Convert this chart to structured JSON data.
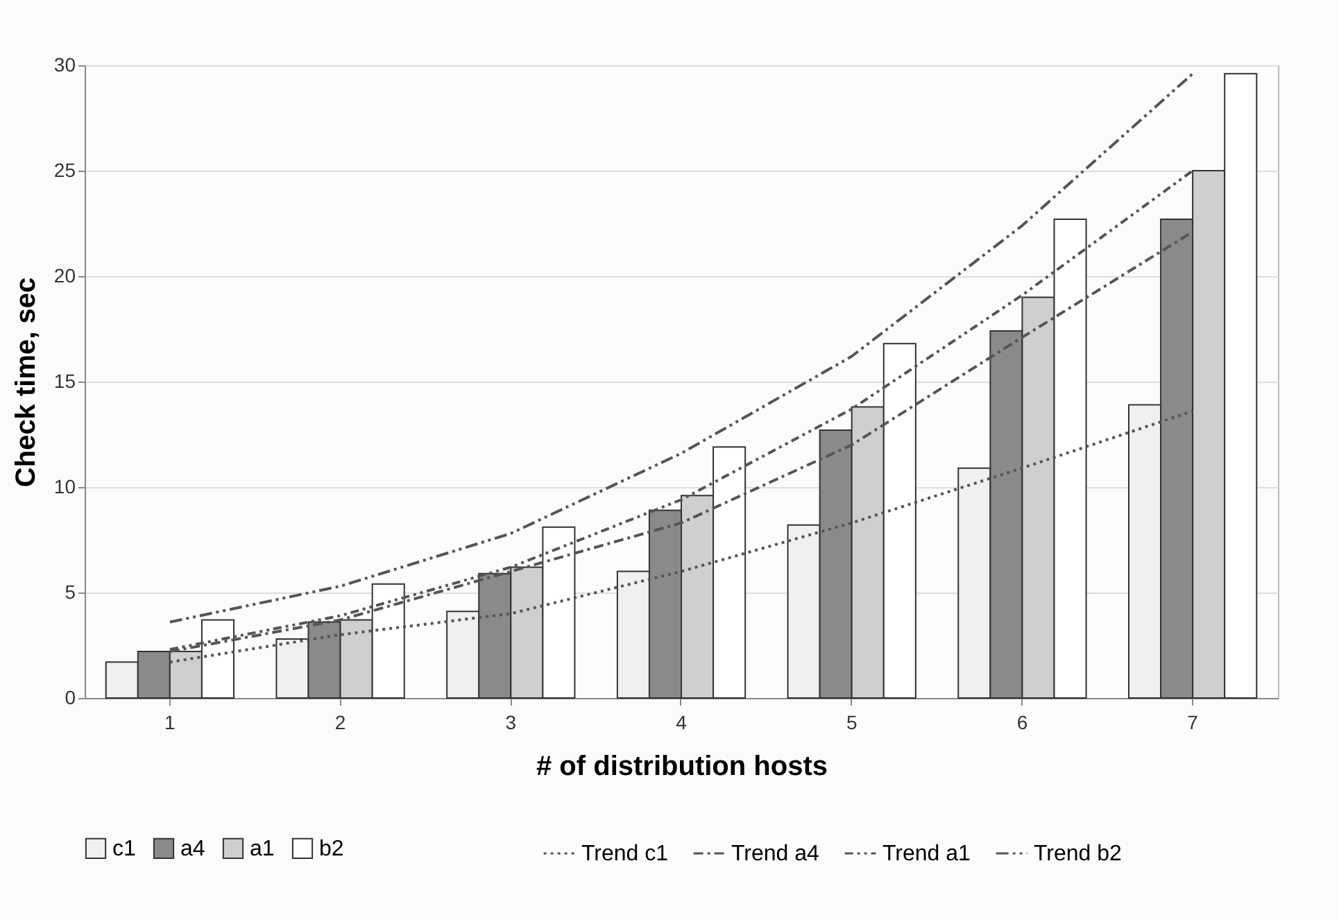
{
  "chart_data": {
    "type": "bar",
    "xlabel": "# of distribution hosts",
    "ylabel": "Check time, sec",
    "categories": [
      "1",
      "2",
      "3",
      "4",
      "5",
      "6",
      "7"
    ],
    "series": [
      {
        "name": "c1",
        "color": "#f0f0f0",
        "values": [
          1.7,
          2.8,
          4.1,
          6.0,
          8.2,
          10.9,
          13.9
        ]
      },
      {
        "name": "a4",
        "color": "#8a8a8a",
        "values": [
          2.2,
          3.6,
          5.9,
          8.9,
          12.7,
          17.4,
          22.7
        ]
      },
      {
        "name": "a1",
        "color": "#cfcfcf",
        "values": [
          2.2,
          3.7,
          6.2,
          9.6,
          13.8,
          19.0,
          25.0
        ]
      },
      {
        "name": "b2",
        "color": "#ffffff",
        "values": [
          3.7,
          5.4,
          8.1,
          11.9,
          16.8,
          22.7,
          29.6
        ]
      },
      {
        "name": "Trend c1",
        "type": "line",
        "color": "#555555",
        "line_style": "dotted",
        "values": [
          1.7,
          3.0,
          4.0,
          6.0,
          8.3,
          10.9,
          13.6
        ]
      },
      {
        "name": "Trend a4",
        "type": "line",
        "color": "#555555",
        "line_style": "dashed",
        "values": [
          2.2,
          3.7,
          6.0,
          8.3,
          12.0,
          17.1,
          22.1
        ]
      },
      {
        "name": "Trend a1",
        "type": "line",
        "color": "#555555",
        "line_style": "dashed",
        "values": [
          2.3,
          3.9,
          6.2,
          9.4,
          13.7,
          19.1,
          25.0
        ]
      },
      {
        "name": "Trend b2",
        "type": "line",
        "color": "#555555",
        "line_style": "dashed",
        "values": [
          3.6,
          5.3,
          7.8,
          11.6,
          16.2,
          22.4,
          29.6
        ]
      }
    ],
    "ylim": [
      0,
      30
    ],
    "yticks": [
      0,
      5,
      10,
      15,
      20,
      25,
      30
    ],
    "grid": "y",
    "legend": "bottom"
  }
}
